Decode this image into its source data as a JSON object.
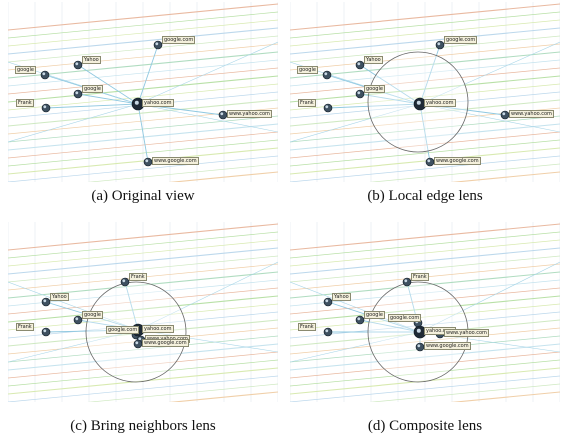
{
  "figure": {
    "panels": [
      {
        "id": "a",
        "caption": "(a) Original view",
        "labels": [
          "google.com",
          "Yahoo",
          "google",
          "google",
          "Frank",
          "yahoo.com",
          "www.yahoo.com",
          "www.google.com"
        ]
      },
      {
        "id": "b",
        "caption": "(b) Local edge lens",
        "labels": [
          "google.com",
          "Yahoo",
          "google",
          "google",
          "Frank",
          "yahoo.com",
          "www.yahoo.com",
          "www.google.com"
        ]
      },
      {
        "id": "c",
        "caption": "(c) Bring neighbors lens",
        "labels": [
          "Yahoo",
          "google",
          "Frank",
          "Frank",
          "google.com",
          "yahoo.com",
          "www.yahoo.com",
          "www.google.com"
        ]
      },
      {
        "id": "d",
        "caption": "(d) Composite lens",
        "labels": [
          "Yahoo",
          "google",
          "Frank",
          "Frank",
          "google.com",
          "yahoo.com",
          "www.yahoo.com",
          "www.google.com"
        ]
      }
    ]
  }
}
